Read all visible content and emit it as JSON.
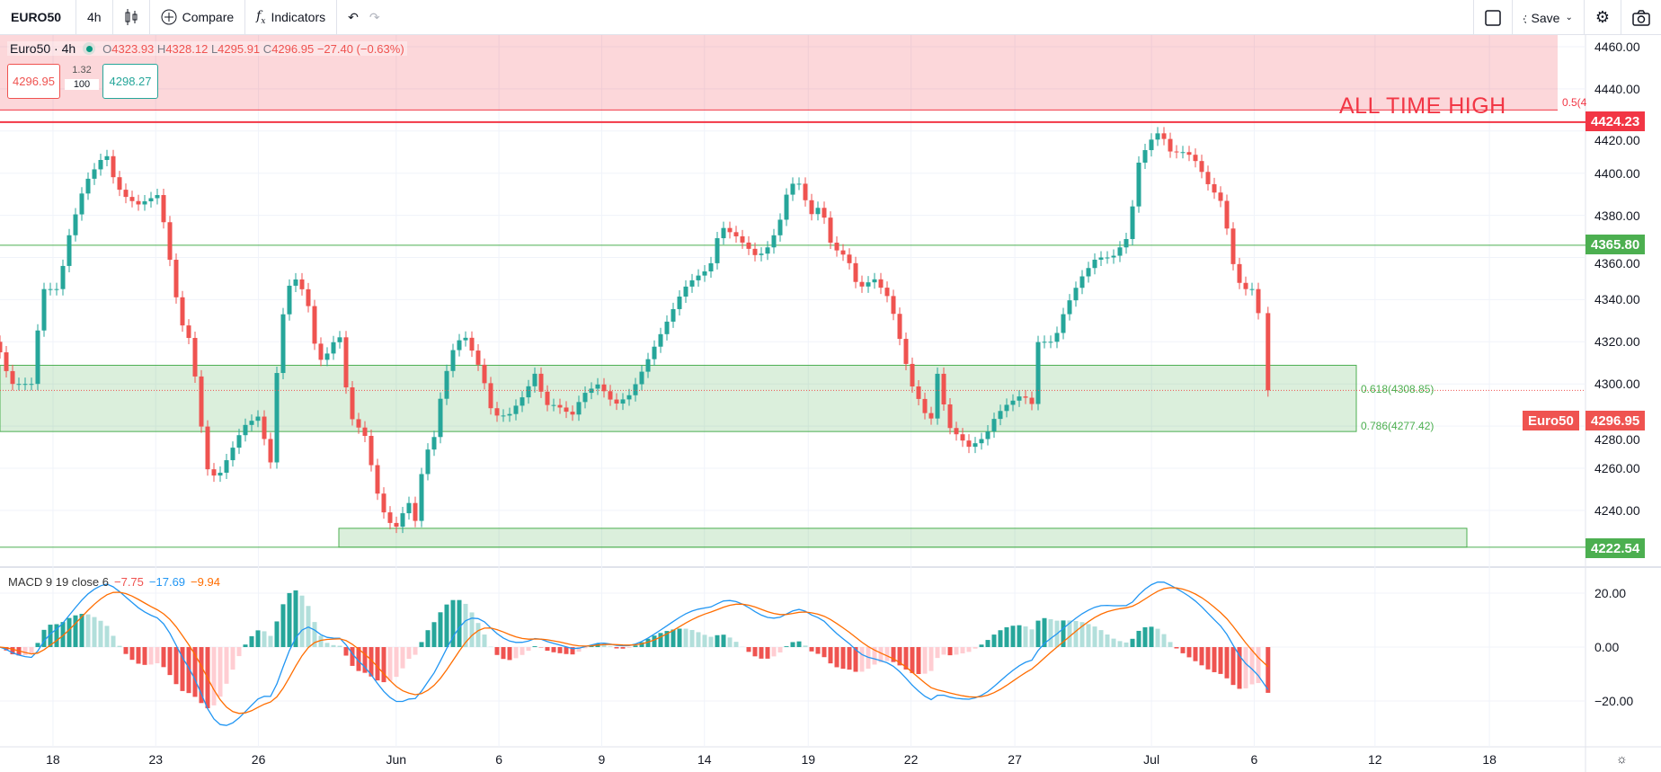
{
  "toolbar": {
    "symbol": "EURO50",
    "interval": "4h",
    "compare": "Compare",
    "indicators": "Indicators",
    "save": "Save",
    "icons": [
      "candles-icon",
      "plus-circle-icon",
      "fx-icon",
      "undo-icon",
      "redo-icon",
      "fullscreen-icon",
      "cloud-icon",
      "chevron-down-icon",
      "gear-icon",
      "camera-icon"
    ]
  },
  "legend": {
    "title": "Euro50 · 4h",
    "o_label": "O",
    "o": "4323.93",
    "h_label": "H",
    "h": "4328.12",
    "l_label": "L",
    "l": "4295.91",
    "c_label": "C",
    "c": "4296.95",
    "change": "−27.40 (−0.63%)",
    "sell": "4296.95",
    "spread": "1.32",
    "qty": "100",
    "buy": "4298.27"
  },
  "macd": {
    "label": "MACD 9 19 close 6",
    "hist": "−7.75",
    "macd": "−17.69",
    "signal": "−9.94",
    "fast": 9,
    "slow": 19,
    "signal_len": 6
  },
  "annotations": {
    "ath_text": "ALL TIME HIGH",
    "ath_price": "4424.23",
    "fib_05": "0.5(4",
    "fib_618": "0.618(4308.85)",
    "fib_786": "0.786(4277.42)",
    "resistance": "4365.80",
    "support": "4222.54",
    "symbol_tag": "Euro50",
    "last_price": "4296.95"
  },
  "colors": {
    "up": "#26a69a",
    "down": "#ef5350",
    "macd": "#2196f3",
    "signal": "#ff6d00",
    "zone_red": "#f23645",
    "zone_green": "#4caf50"
  },
  "chart_data": {
    "type": "candlestick",
    "price_axis": [
      "4460.00",
      "4440.00",
      "4420.00",
      "4400.00",
      "4380.00",
      "4360.00",
      "4340.00",
      "4320.00",
      "4300.00",
      "4280.00",
      "4260.00",
      "4240.00"
    ],
    "macd_axis": [
      "20.00",
      "0.00",
      "−20.00"
    ],
    "time_axis": [
      "18",
      "23",
      "26",
      "Jun",
      "6",
      "9",
      "14",
      "19",
      "22",
      "27",
      "Jul",
      "6",
      "12",
      "18"
    ],
    "ylim": [
      4215,
      4465
    ],
    "levels": {
      "ath": 4424.23,
      "resistance": 4365.8,
      "support": 4222.54,
      "fib_618": 4308.85,
      "fib_786": 4277.42,
      "red_zone_low": 4430,
      "support_zone_high": 4231.5
    },
    "closes": [
      4315,
      4300,
      4300,
      4345,
      4345,
      4370,
      4395,
      4410,
      4400,
      4390,
      4385,
      4390,
      4360,
      4330,
      4320,
      4280,
      4260,
      4255,
      4265,
      4280,
      4285,
      4260,
      4310,
      4345,
      4350,
      4340,
      4310,
      4315,
      4325,
      4285,
      4275,
      4250,
      4235,
      4232,
      4245,
      4235,
      4265,
      4275,
      4300,
      4320,
      4322,
      4305,
      4285,
      4285,
      4295,
      4305,
      4290,
      4290,
      4285,
      4295,
      4300,
      4290,
      4295,
      4310,
      4320,
      4335,
      4345,
      4350,
      4355,
      4375,
      4370,
      4365,
      4360,
      4365,
      4375,
      4395,
      4395,
      4380,
      4385,
      4365,
      4360,
      4345,
      4350,
      4340,
      4320,
      4300,
      4290,
      4280,
      4305,
      4280,
      4275,
      4270,
      4275,
      4285,
      4290,
      4295,
      4290,
      4320,
      4320,
      4335,
      4350,
      4360,
      4360,
      4370,
      4405,
      4415,
      4420,
      4410,
      4410,
      4405,
      4395,
      4385,
      4360,
      4345,
      4345,
      4325,
      4296.95
    ]
  }
}
